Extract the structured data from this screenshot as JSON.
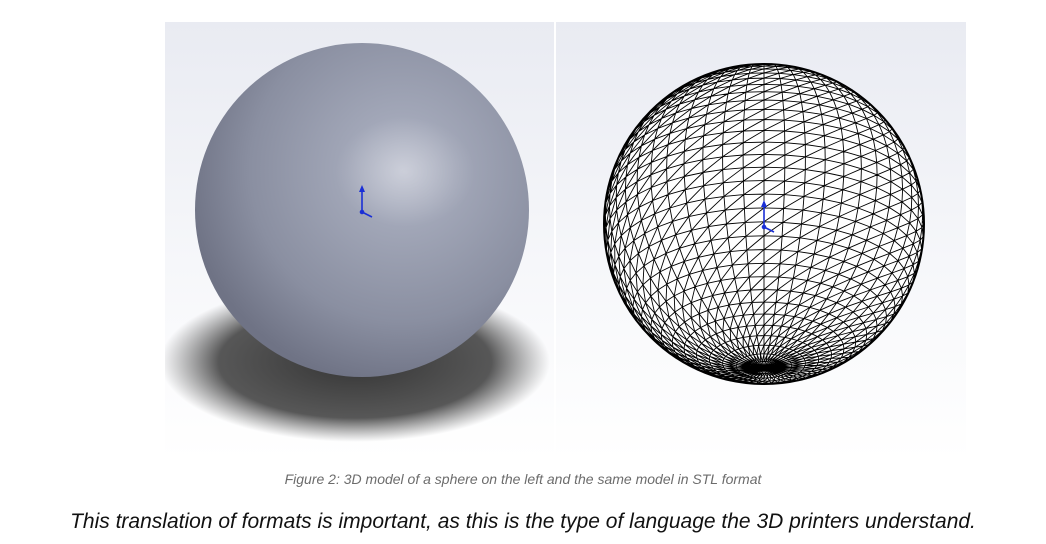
{
  "figure": {
    "caption": "Figure 2: 3D model of a sphere on the left and the same model in STL format",
    "left_panel": {
      "icon": "axis-triad-icon",
      "sphere_color": "#8f94a6"
    },
    "right_panel": {
      "icon": "axis-triad-icon",
      "mesh_color": "#000000"
    }
  },
  "body": {
    "text": "This translation of formats is important, as this is the type of language the 3D printers understand."
  }
}
